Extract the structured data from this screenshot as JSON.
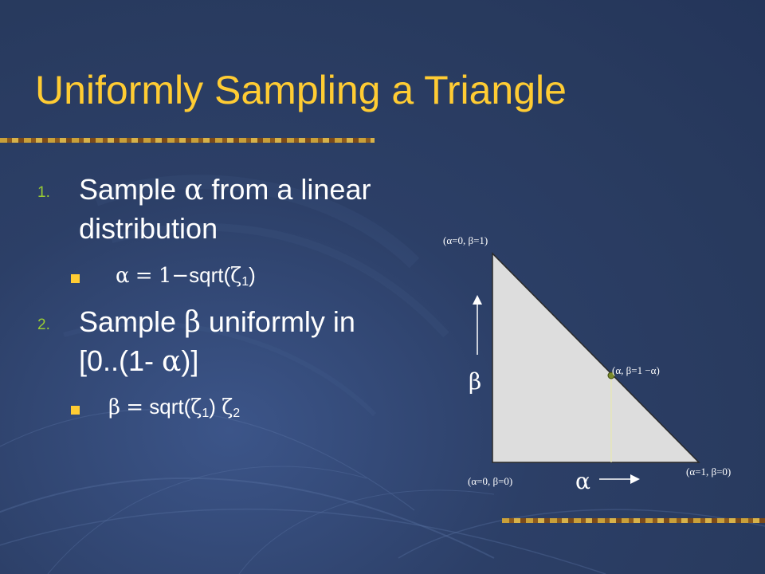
{
  "slide": {
    "title": "Uniformly Sampling a Triangle",
    "steps": [
      {
        "number": "1.",
        "line1_prefix": "Sample ",
        "line1_symbol": "α",
        "line1_suffix": " from a linear",
        "line2": "distribution",
        "sub": {
          "lhs": "α",
          "eq": "=",
          "one": "1",
          "minus": "−",
          "func": "sqrt(",
          "zeta": "ζ",
          "index": "1",
          "close": ")"
        }
      },
      {
        "number": "2.",
        "line1_prefix": "Sample ",
        "line1_symbol": "β",
        "line1_suffix": " uniformly in",
        "line2_prefix": "[0..(1- ",
        "line2_symbol": "α",
        "line2_suffix": ")]",
        "sub": {
          "lhs": "β",
          "eq": "=",
          "func": "sqrt(",
          "zeta1": "ζ",
          "index1": "1",
          "close": ")",
          "zeta2": "ζ",
          "index2": "2"
        }
      }
    ]
  },
  "figure": {
    "labels": {
      "top": "(α=0, β=1)",
      "bottom_left": "(α=0, β=0)",
      "bottom_right": "(α=1, β=0)",
      "sample_point": "(α, β=1 −α)"
    },
    "axis_alpha": "α",
    "axis_beta": "β",
    "colors": {
      "triangle_fill": "#dddddd",
      "point": "#7a8a2a",
      "guide_line": "#e8eab0"
    }
  }
}
